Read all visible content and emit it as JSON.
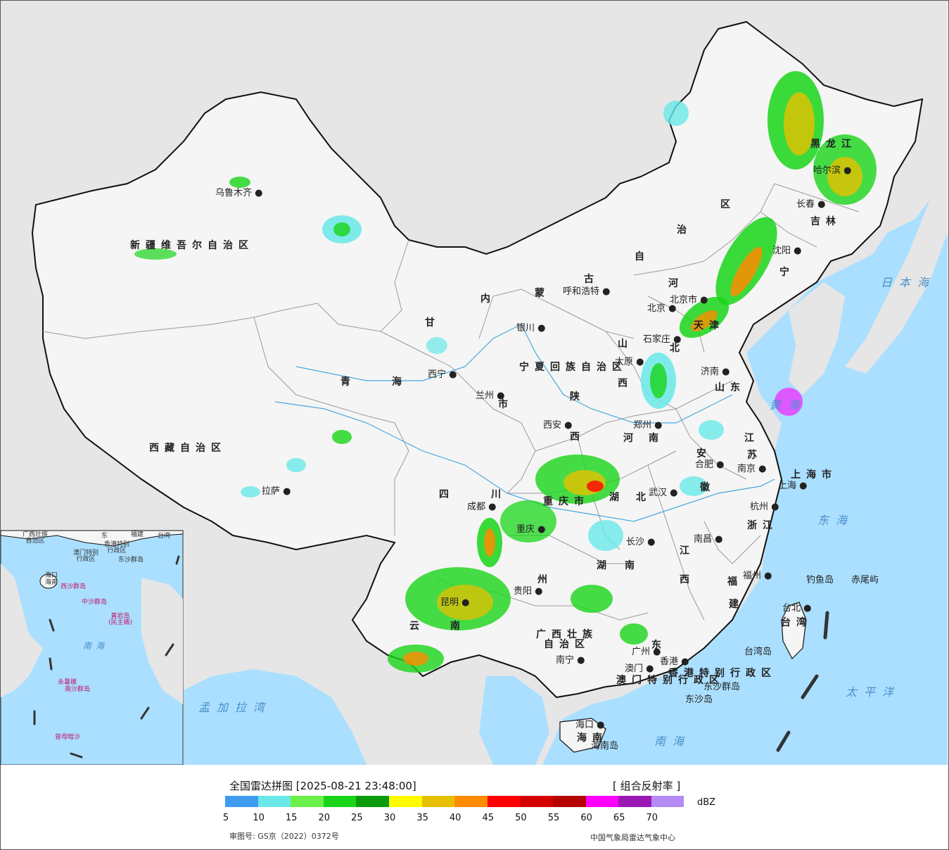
{
  "map": {
    "provinces": [
      {
        "id": "xinjiang",
        "text": "新疆维吾尔自治区"
      },
      {
        "id": "xizang",
        "text": "西藏自治区"
      },
      {
        "id": "qinghai-qing",
        "text": "青"
      },
      {
        "id": "qinghai-hai",
        "text": "海"
      },
      {
        "id": "gansu",
        "text": "甘"
      },
      {
        "id": "ningxia",
        "text": "宁夏回族自治区"
      },
      {
        "id": "nm-nei",
        "text": "内"
      },
      {
        "id": "nm-meng",
        "text": "蒙"
      },
      {
        "id": "nm-gu",
        "text": "古"
      },
      {
        "id": "nm-zi",
        "text": "自"
      },
      {
        "id": "nm-zhi",
        "text": "治"
      },
      {
        "id": "nm-qu",
        "text": "区"
      },
      {
        "id": "hlj",
        "text": "黑龙江"
      },
      {
        "id": "jilin",
        "text": "吉林"
      },
      {
        "id": "liaoning",
        "text": "宁"
      },
      {
        "id": "hebei-he",
        "text": "河"
      },
      {
        "id": "hebei-bei",
        "text": "北"
      },
      {
        "id": "shanxi-shan",
        "text": "山"
      },
      {
        "id": "shanxi-xi",
        "text": "西"
      },
      {
        "id": "shandong",
        "text": "山东"
      },
      {
        "id": "henan-he",
        "text": "河"
      },
      {
        "id": "henan-nan",
        "text": "南"
      },
      {
        "id": "shaanxi-shaan",
        "text": "陕"
      },
      {
        "id": "shaanxi-xi",
        "text": "西"
      },
      {
        "id": "sichuan-si",
        "text": "四"
      },
      {
        "id": "sichuan-chuan",
        "text": "川"
      },
      {
        "id": "chongqing",
        "text": "重庆市"
      },
      {
        "id": "hubei-hu",
        "text": "湖"
      },
      {
        "id": "hubei-bei",
        "text": "北"
      },
      {
        "id": "hunan-hu",
        "text": "湖"
      },
      {
        "id": "hunan-nan",
        "text": "南"
      },
      {
        "id": "guizhou",
        "text": "州"
      },
      {
        "id": "yunnan-yun",
        "text": "云"
      },
      {
        "id": "yunnan-nan",
        "text": "南"
      },
      {
        "id": "guangxi",
        "text": "广西壮族\n自治区"
      },
      {
        "id": "guangdong",
        "text": "东"
      },
      {
        "id": "jiangxi-jiang",
        "text": "江"
      },
      {
        "id": "jiangxi-xi",
        "text": "西"
      },
      {
        "id": "fujian-fu",
        "text": "福"
      },
      {
        "id": "fujian-jian",
        "text": "建"
      },
      {
        "id": "zhejiang",
        "text": "浙江"
      },
      {
        "id": "anhui-an",
        "text": "安"
      },
      {
        "id": "anhui-hui",
        "text": "徽"
      },
      {
        "id": "jiangsu-jiang",
        "text": "江"
      },
      {
        "id": "jiangsu-su",
        "text": "苏"
      },
      {
        "id": "shanghai",
        "text": "上海市"
      },
      {
        "id": "tianjin",
        "text": "天津"
      },
      {
        "id": "gansu-shi",
        "text": "市"
      },
      {
        "id": "hongkong",
        "text": "香港特别行政区"
      },
      {
        "id": "macau",
        "text": "澳门特别行政区"
      },
      {
        "id": "hainan",
        "text": "海南"
      },
      {
        "id": "taiwan",
        "text": "台湾"
      }
    ],
    "cities": [
      {
        "id": "urumqi",
        "text": "乌鲁木齐"
      },
      {
        "id": "lhasa",
        "text": "拉萨"
      },
      {
        "id": "xining",
        "text": "西宁"
      },
      {
        "id": "lanzhou",
        "text": "兰州"
      },
      {
        "id": "yinchuan",
        "text": "银川"
      },
      {
        "id": "hohhot",
        "text": "呼和浩特"
      },
      {
        "id": "beijing",
        "text": "北京"
      },
      {
        "id": "beijing-city",
        "text": "北京市"
      },
      {
        "id": "shijiazhuang",
        "text": "石家庄"
      },
      {
        "id": "taiyuan",
        "text": "太原"
      },
      {
        "id": "jinan",
        "text": "济南"
      },
      {
        "id": "zhengzhou",
        "text": "郑州"
      },
      {
        "id": "xian",
        "text": "西安"
      },
      {
        "id": "chengdu",
        "text": "成都"
      },
      {
        "id": "chongqing-city",
        "text": "重庆"
      },
      {
        "id": "wuhan",
        "text": "武汉"
      },
      {
        "id": "hefei",
        "text": "合肥"
      },
      {
        "id": "nanjing",
        "text": "南京"
      },
      {
        "id": "shanghai-city",
        "text": "上海"
      },
      {
        "id": "hangzhou",
        "text": "杭州"
      },
      {
        "id": "changsha",
        "text": "长沙"
      },
      {
        "id": "nanchang",
        "text": "南昌"
      },
      {
        "id": "fuzhou",
        "text": "福州"
      },
      {
        "id": "guiyang",
        "text": "贵阳"
      },
      {
        "id": "kunming",
        "text": "昆明"
      },
      {
        "id": "nanning",
        "text": "南宁"
      },
      {
        "id": "guangzhou",
        "text": "广州"
      },
      {
        "id": "hongkong-city",
        "text": "香港"
      },
      {
        "id": "macau-city",
        "text": "澳门"
      },
      {
        "id": "haikou",
        "text": "海口"
      },
      {
        "id": "taipei",
        "text": "台北"
      },
      {
        "id": "changchun",
        "text": "长春"
      },
      {
        "id": "shenyang",
        "text": "沈阳"
      },
      {
        "id": "harbin",
        "text": "哈尔滨"
      }
    ],
    "seas_islands": [
      {
        "id": "sea-japan",
        "text": "日本海"
      },
      {
        "id": "sea-yellow",
        "text": "黄海"
      },
      {
        "id": "sea-east",
        "text": "东海"
      },
      {
        "id": "sea-pacific",
        "text": "太平洋"
      },
      {
        "id": "sea-south",
        "text": "南海"
      },
      {
        "id": "sea-bengal",
        "text": "孟加拉湾"
      },
      {
        "id": "diaoyu",
        "text": "钓鱼岛"
      },
      {
        "id": "chiwei",
        "text": "赤尾屿"
      },
      {
        "id": "taiwan-island",
        "text": "台湾岛"
      },
      {
        "id": "dongsha-qundao",
        "text": "东沙群岛"
      },
      {
        "id": "dongsha-dao",
        "text": "东沙岛"
      },
      {
        "id": "hainan-dao",
        "text": "海南岛"
      }
    ],
    "inset": [
      {
        "id": "in-gx",
        "text": "广西壮族\n自治区"
      },
      {
        "id": "in-gd",
        "text": "东"
      },
      {
        "id": "in-fj",
        "text": "福建"
      },
      {
        "id": "in-tw",
        "text": "台湾"
      },
      {
        "id": "in-hk",
        "text": "香港特别\n行政区"
      },
      {
        "id": "in-mo",
        "text": "澳门特别\n行政区"
      },
      {
        "id": "in-dongsha",
        "text": "东沙群岛"
      },
      {
        "id": "in-haikou",
        "text": "海口"
      },
      {
        "id": "in-hainan",
        "text": "海南"
      },
      {
        "id": "in-xisha",
        "text": "西沙群岛"
      },
      {
        "id": "in-zhongsha",
        "text": "中沙群岛"
      },
      {
        "id": "in-huangyan",
        "text": "黄岩岛\n(民主礁)"
      },
      {
        "id": "in-nanhai",
        "text": "南海"
      },
      {
        "id": "in-nansha",
        "text": "南沙群岛"
      },
      {
        "id": "in-yongshu",
        "text": "永暑礁"
      },
      {
        "id": "in-zengmu",
        "text": "曾母暗沙"
      }
    ]
  },
  "legend": {
    "title": "全国雷达拼图 [2025-08-21 23:48:00]",
    "product": "[ 组合反射率 ]",
    "unit": "dBZ",
    "scale": [
      {
        "color": "#3f9bf0",
        "value": "5"
      },
      {
        "color": "#6ae8e8",
        "value": "10"
      },
      {
        "color": "#6af048",
        "value": "15"
      },
      {
        "color": "#19d519",
        "value": "20"
      },
      {
        "color": "#0b9a0b",
        "value": "25"
      },
      {
        "color": "#fffb00",
        "value": "30"
      },
      {
        "color": "#e6c000",
        "value": "35"
      },
      {
        "color": "#ff8c00",
        "value": "40"
      },
      {
        "color": "#ff0000",
        "value": "45"
      },
      {
        "color": "#d40000",
        "value": "50"
      },
      {
        "color": "#b50000",
        "value": "55"
      },
      {
        "color": "#ff00ff",
        "value": "60"
      },
      {
        "color": "#9a19b5",
        "value": "65"
      },
      {
        "color": "#b48af5",
        "value": "70"
      }
    ],
    "review_no": "审图号: GS京（2022）0372号",
    "org": "中国气象局雷达气象中心"
  },
  "colors": {
    "ocean": "#aadfff",
    "land": "#f5f5f5",
    "outside": "#e6e6e6",
    "border": "#111111",
    "province_border": "#9a9a9a"
  }
}
